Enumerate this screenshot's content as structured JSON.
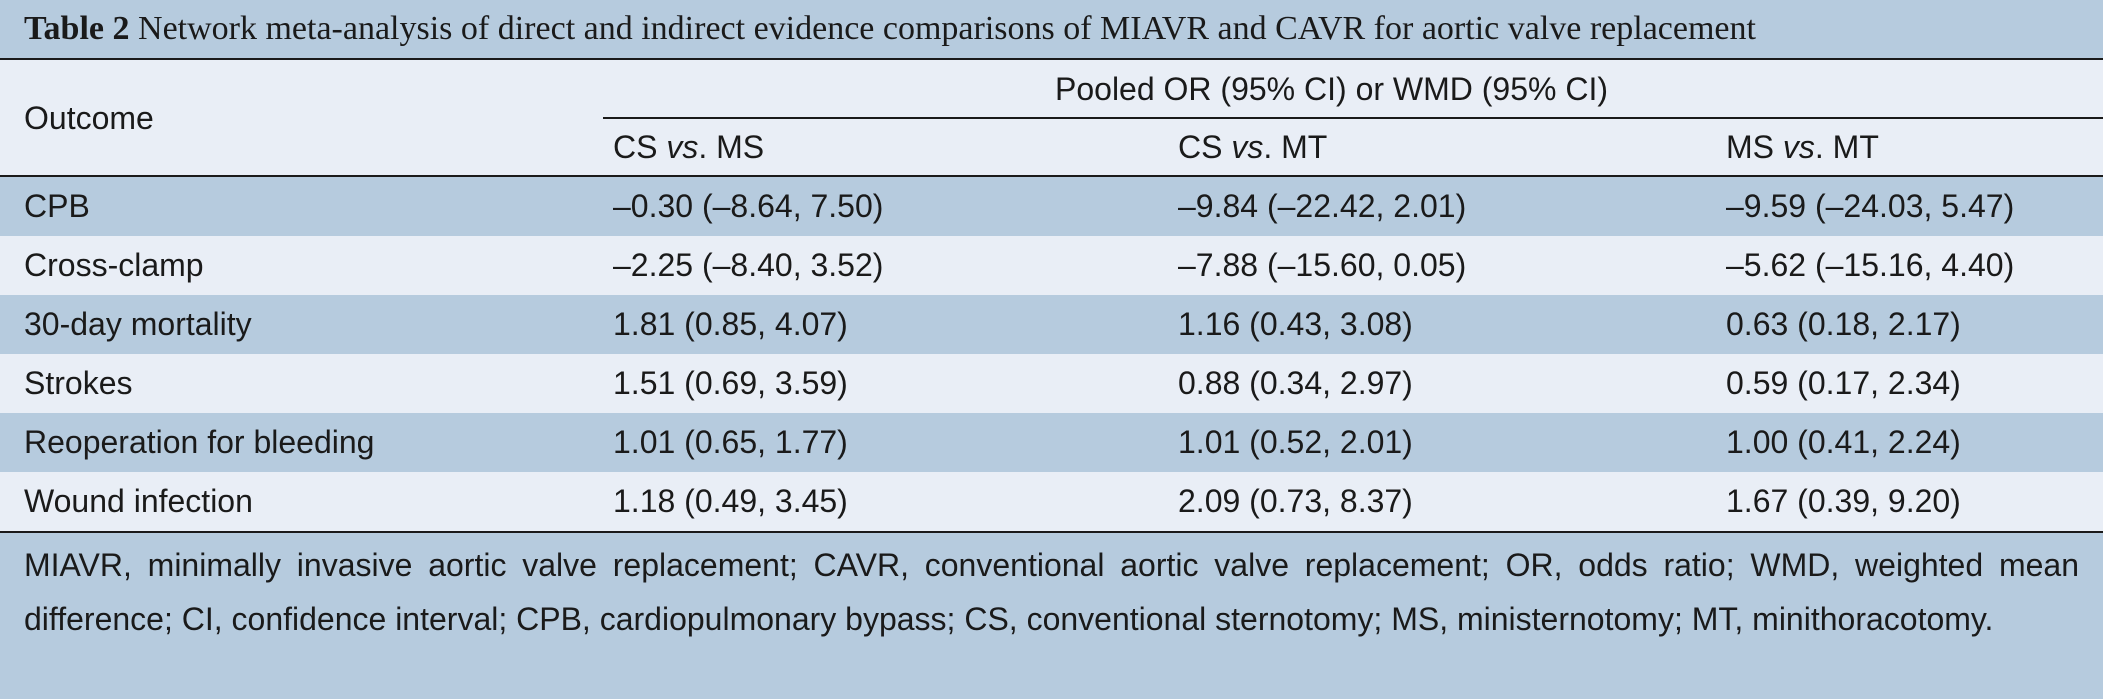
{
  "title": {
    "label": "Table 2",
    "text": "Network meta-analysis of direct and indirect evidence comparisons of MIAVR and CAVR for aortic valve replacement"
  },
  "header": {
    "outcome": "Outcome",
    "pooled": "Pooled OR (95% CI) or WMD (95% CI)",
    "columns": [
      {
        "a": "CS ",
        "vs": "vs",
        "b": ". MS"
      },
      {
        "a": "CS ",
        "vs": "vs",
        "b": ". MT"
      },
      {
        "a": "MS ",
        "vs": "vs",
        "b": ". MT"
      }
    ]
  },
  "rows": [
    {
      "outcome": "CPB",
      "cs_ms": "–0.30 (–8.64, 7.50)",
      "cs_mt": "–9.84 (–22.42, 2.01)",
      "ms_mt": "–9.59 (–24.03, 5.47)"
    },
    {
      "outcome": "Cross-clamp",
      "cs_ms": "–2.25 (–8.40, 3.52)",
      "cs_mt": "–7.88 (–15.60, 0.05)",
      "ms_mt": "–5.62 (–15.16, 4.40)"
    },
    {
      "outcome": "30-day mortality",
      "cs_ms": "1.81 (0.85, 4.07)",
      "cs_mt": "1.16 (0.43, 3.08)",
      "ms_mt": "0.63 (0.18, 2.17)"
    },
    {
      "outcome": "Strokes",
      "cs_ms": "1.51 (0.69, 3.59)",
      "cs_mt": "0.88 (0.34, 2.97)",
      "ms_mt": "0.59 (0.17, 2.34)"
    },
    {
      "outcome": "Reoperation for bleeding",
      "cs_ms": "1.01 (0.65, 1.77)",
      "cs_mt": "1.01 (0.52, 2.01)",
      "ms_mt": "1.00 (0.41, 2.24)"
    },
    {
      "outcome": "Wound infection",
      "cs_ms": "1.18 (0.49, 3.45)",
      "cs_mt": "2.09 (0.73, 8.37)",
      "ms_mt": "1.67 (0.39, 9.20)"
    }
  ],
  "footnote": "MIAVR, minimally invasive aortic valve replacement; CAVR, conventional aortic valve replacement; OR, odds ratio; WMD, weighted mean difference; CI, confidence interval; CPB, cardiopulmonary bypass; CS, conventional sternotomy; MS, ministernotomy; MT, minithoracotomy.",
  "colors": {
    "band": "#b6cbde",
    "light": "#e9eef6",
    "rule": "#1a1a1a"
  }
}
